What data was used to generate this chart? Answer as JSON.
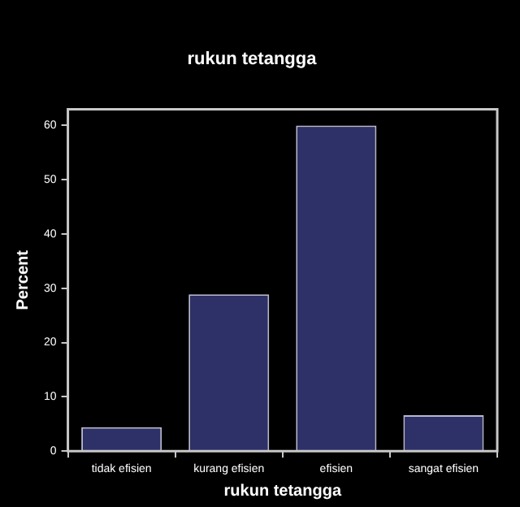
{
  "chart_data": {
    "type": "bar",
    "title": "rukun tetangga",
    "xlabel": "rukun tetangga",
    "ylabel": "Percent",
    "categories": [
      "tidak efisien",
      "kurang efisien",
      "efisien",
      "sangat efisien"
    ],
    "values": [
      4.4,
      28.9,
      60,
      6.6
    ],
    "color": "#2e3168",
    "ylim": [
      0,
      63
    ],
    "yticks": [
      0,
      10,
      20,
      30,
      40,
      50,
      60
    ],
    "grid": false,
    "legend": false
  }
}
